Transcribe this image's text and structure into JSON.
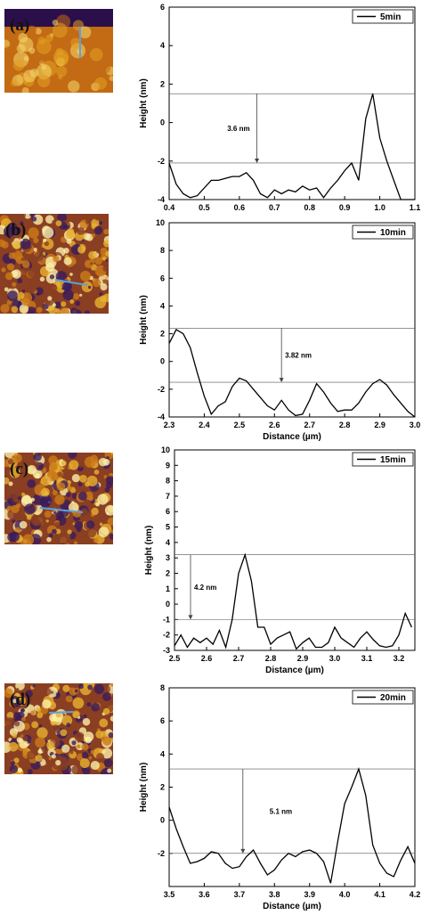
{
  "panels": [
    {
      "panel_label": "(a)",
      "afm_palette": [
        "#2a0f4a",
        "#7a3a16",
        "#c26a14",
        "#e3a020",
        "#f6d86a"
      ],
      "chart_data": {
        "type": "line",
        "legend": "5min",
        "xlabel": "",
        "ylabel": "Height (nm)",
        "xlim": [
          0.4,
          1.1
        ],
        "ylim": [
          -4,
          6
        ],
        "xticks": [
          "0.4",
          "0.5",
          "0.6",
          "0.7",
          "0.8",
          "0.9",
          "1.0",
          "1.1"
        ],
        "yticks": [
          "-4",
          "-2",
          "0",
          "2",
          "4",
          "6"
        ],
        "annotation": "3.6 nm",
        "ref_lines": [
          1.5,
          -2.1
        ],
        "arrow_x": 0.65,
        "x": [
          0.4,
          0.42,
          0.44,
          0.46,
          0.48,
          0.5,
          0.52,
          0.54,
          0.56,
          0.58,
          0.6,
          0.62,
          0.64,
          0.66,
          0.68,
          0.7,
          0.72,
          0.74,
          0.76,
          0.78,
          0.8,
          0.82,
          0.84,
          0.86,
          0.88,
          0.9,
          0.92,
          0.94,
          0.96,
          0.98,
          1.0,
          1.02,
          1.04,
          1.06,
          1.08,
          1.1
        ],
        "y": [
          -2.1,
          -3.2,
          -3.7,
          -3.9,
          -3.8,
          -3.4,
          -3.0,
          -3.0,
          -2.9,
          -2.8,
          -2.8,
          -2.6,
          -3.0,
          -3.7,
          -3.9,
          -3.5,
          -3.7,
          -3.5,
          -3.6,
          -3.3,
          -3.5,
          -3.4,
          -3.9,
          -3.4,
          -3.0,
          -2.5,
          -2.1,
          -3.0,
          0.2,
          1.5,
          -0.8,
          -2.0,
          -3.0,
          -4.0,
          -4.0,
          -4.0
        ]
      }
    },
    {
      "panel_label": "(b)",
      "afm_palette": [
        "#3a1c5c",
        "#8a3e22",
        "#cc7a18",
        "#e9b230",
        "#fbefa8"
      ],
      "chart_data": {
        "type": "line",
        "legend": "10min",
        "xlabel": "Distance (µm)",
        "ylabel": "Height (nm)",
        "xlim": [
          2.3,
          3.0
        ],
        "ylim": [
          -4,
          10
        ],
        "xticks": [
          "2.3",
          "2.4",
          "2.5",
          "2.6",
          "2.7",
          "2.8",
          "2.9",
          "3.0"
        ],
        "yticks": [
          "-4",
          "-2",
          "0",
          "2",
          "4",
          "6",
          "8",
          "10"
        ],
        "annotation": "3.82 nm",
        "ref_lines": [
          2.4,
          -1.5
        ],
        "arrow_x": 2.62,
        "x": [
          2.3,
          2.32,
          2.34,
          2.36,
          2.38,
          2.4,
          2.42,
          2.44,
          2.46,
          2.48,
          2.5,
          2.52,
          2.54,
          2.56,
          2.58,
          2.6,
          2.62,
          2.64,
          2.66,
          2.68,
          2.7,
          2.72,
          2.74,
          2.76,
          2.78,
          2.8,
          2.82,
          2.84,
          2.86,
          2.88,
          2.9,
          2.92,
          2.94,
          2.96,
          2.98,
          3.0
        ],
        "y": [
          1.3,
          2.3,
          2.0,
          1.0,
          -0.8,
          -2.5,
          -3.8,
          -3.2,
          -2.9,
          -1.8,
          -1.2,
          -1.4,
          -2.0,
          -2.6,
          -3.2,
          -3.5,
          -2.8,
          -3.5,
          -3.9,
          -3.8,
          -2.8,
          -1.6,
          -2.2,
          -3.0,
          -3.6,
          -3.5,
          -3.5,
          -3.0,
          -2.2,
          -1.6,
          -1.3,
          -1.7,
          -2.4,
          -3.0,
          -3.6,
          -4.0
        ]
      }
    },
    {
      "panel_label": "(c)",
      "afm_palette": [
        "#3a1c5c",
        "#8a3e22",
        "#cc7a18",
        "#e9b230",
        "#fbefa8"
      ],
      "chart_data": {
        "type": "line",
        "legend": "15min",
        "xlabel": "Distance (µm)",
        "ylabel": "Height (nm)",
        "xlim": [
          2.5,
          3.25
        ],
        "ylim": [
          -3,
          10
        ],
        "xticks": [
          "2.5",
          "2.6",
          "2.7",
          "2.8",
          "2.9",
          "3.0",
          "3.1",
          "3.2"
        ],
        "yticks": [
          "-3",
          "-2",
          "-1",
          "0",
          "1",
          "2",
          "3",
          "4",
          "5",
          "6",
          "7",
          "8",
          "9",
          "10"
        ],
        "annotation": "4.2 nm",
        "ref_lines": [
          3.2,
          -1.0
        ],
        "arrow_x": 2.55,
        "x": [
          2.5,
          2.52,
          2.54,
          2.56,
          2.58,
          2.6,
          2.62,
          2.64,
          2.66,
          2.68,
          2.7,
          2.72,
          2.74,
          2.76,
          2.78,
          2.8,
          2.82,
          2.84,
          2.86,
          2.88,
          2.9,
          2.92,
          2.94,
          2.96,
          2.98,
          3.0,
          3.02,
          3.04,
          3.06,
          3.08,
          3.1,
          3.12,
          3.14,
          3.16,
          3.18,
          3.2,
          3.22,
          3.24
        ],
        "y": [
          -2.7,
          -2.0,
          -2.8,
          -2.2,
          -2.5,
          -2.2,
          -2.6,
          -1.7,
          -2.8,
          -1.0,
          2.0,
          3.2,
          1.5,
          -1.5,
          -1.5,
          -2.6,
          -2.2,
          -2.0,
          -1.8,
          -2.9,
          -2.5,
          -2.2,
          -2.8,
          -2.8,
          -2.5,
          -1.5,
          -2.2,
          -2.5,
          -2.8,
          -2.2,
          -1.8,
          -2.3,
          -2.7,
          -2.8,
          -2.7,
          -2.0,
          -0.6,
          -1.5
        ]
      }
    },
    {
      "panel_label": "(d)",
      "afm_palette": [
        "#3a1c5c",
        "#8a3e22",
        "#cc7a18",
        "#e9b230",
        "#fbefa8"
      ],
      "chart_data": {
        "type": "line",
        "legend": "20min",
        "xlabel": "Distance (µm)",
        "ylabel": "Height (nm)",
        "xlim": [
          3.5,
          4.2
        ],
        "ylim": [
          -4,
          8
        ],
        "xticks": [
          "3.5",
          "3.6",
          "3.7",
          "3.8",
          "3.9",
          "4.0",
          "4.1",
          "4.2"
        ],
        "yticks": [
          "-2",
          "0",
          "2",
          "4",
          "6",
          "8"
        ],
        "annotation": "5.1 nm",
        "ref_lines": [
          3.1,
          -2.0
        ],
        "arrow_x": 3.71,
        "x": [
          3.5,
          3.52,
          3.54,
          3.56,
          3.58,
          3.6,
          3.62,
          3.64,
          3.66,
          3.68,
          3.7,
          3.72,
          3.74,
          3.76,
          3.78,
          3.8,
          3.82,
          3.84,
          3.86,
          3.88,
          3.9,
          3.92,
          3.94,
          3.96,
          3.98,
          4.0,
          4.02,
          4.04,
          4.06,
          4.08,
          4.1,
          4.12,
          4.14,
          4.16,
          4.18,
          4.2
        ],
        "y": [
          0.8,
          -0.5,
          -1.6,
          -2.6,
          -2.5,
          -2.3,
          -1.9,
          -2.0,
          -2.6,
          -2.9,
          -2.8,
          -2.2,
          -1.8,
          -2.6,
          -3.3,
          -3.0,
          -2.4,
          -2.0,
          -2.2,
          -1.9,
          -1.8,
          -2.0,
          -2.5,
          -3.8,
          -1.3,
          1.0,
          2.0,
          3.1,
          1.5,
          -1.5,
          -2.6,
          -3.2,
          -3.4,
          -2.4,
          -1.6,
          -2.6
        ]
      }
    }
  ]
}
